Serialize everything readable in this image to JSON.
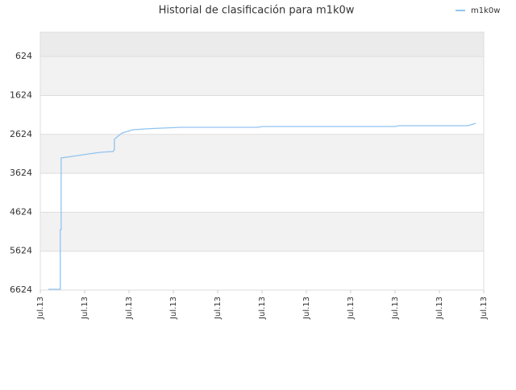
{
  "chart_data": {
    "type": "line",
    "title": "Historial de clasificación para m1k0w",
    "series": [
      {
        "name": "m1k0w",
        "color": "#90c4f0",
        "x": [
          0.18,
          0.45,
          0.45,
          0.47,
          0.47,
          0.73,
          1.09,
          1.36,
          1.64,
          1.67,
          1.67,
          1.75,
          1.85,
          2.09,
          2.36,
          2.73,
          3.18,
          4.91,
          5.0,
          8.0,
          8.09,
          9.64,
          9.82
        ],
        "values": [
          6603,
          6603,
          5072,
          5072,
          3229,
          3188,
          3126,
          3084,
          3063,
          3022,
          2753,
          2670,
          2588,
          2505,
          2484,
          2463,
          2443,
          2443,
          2422,
          2422,
          2401,
          2401,
          2339
        ]
      }
    ],
    "xlim": [
      0,
      10
    ],
    "xticks": [
      {
        "value": 0,
        "label": "Jul.13"
      },
      {
        "value": 1,
        "label": "Jul.13"
      },
      {
        "value": 2,
        "label": "Jul.13"
      },
      {
        "value": 3,
        "label": "Jul.13"
      },
      {
        "value": 4,
        "label": "Jul.13"
      },
      {
        "value": 5,
        "label": "Jul.13"
      },
      {
        "value": 6,
        "label": "Jul.13"
      },
      {
        "value": 7,
        "label": "Jul.13"
      },
      {
        "value": 8,
        "label": "Jul.13"
      },
      {
        "value": 9,
        "label": "Jul.13"
      },
      {
        "value": 10,
        "label": "Jul.13"
      }
    ],
    "ylim": [
      6624,
      0
    ],
    "yticks": [
      624,
      1624,
      2624,
      3624,
      4624,
      5624,
      6624
    ],
    "grid": true,
    "legend": "top-right"
  }
}
